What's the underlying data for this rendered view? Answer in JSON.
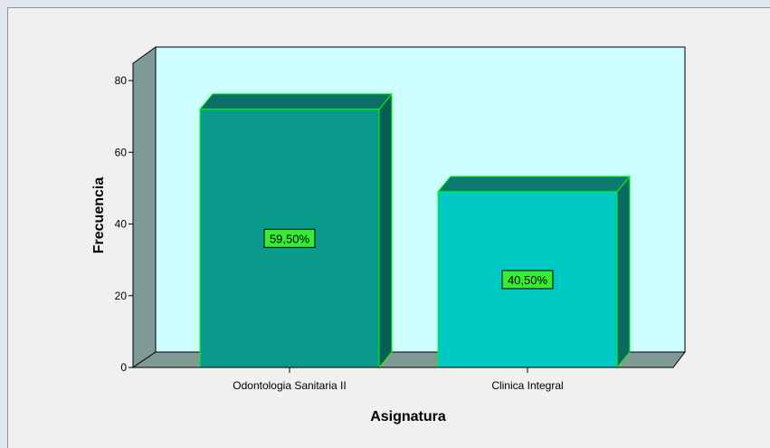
{
  "chart_data": {
    "type": "bar",
    "title": "",
    "xlabel": "Asignatura",
    "ylabel": "Frecuencia",
    "categories": [
      "Odontologia Sanitaria II",
      "Clinica Integral"
    ],
    "values": [
      72,
      49
    ],
    "data_labels": [
      "59,50%",
      "40,50%"
    ],
    "ylim": [
      0,
      85
    ],
    "yticks": [
      0,
      20,
      40,
      60,
      80
    ],
    "grid": false,
    "legend": "none",
    "bar_colors": [
      "#0a9a8c",
      "#00c8c3"
    ],
    "bar_top_colors": [
      "#0b6f67",
      "#0c7a72"
    ],
    "bar_side_colors": [
      "#075e56",
      "#086a63"
    ],
    "plot_background": "#ccfdff",
    "floor_color": "#7f9a96",
    "bar_outline": "#00ff00",
    "label_background": "#33ee33"
  }
}
